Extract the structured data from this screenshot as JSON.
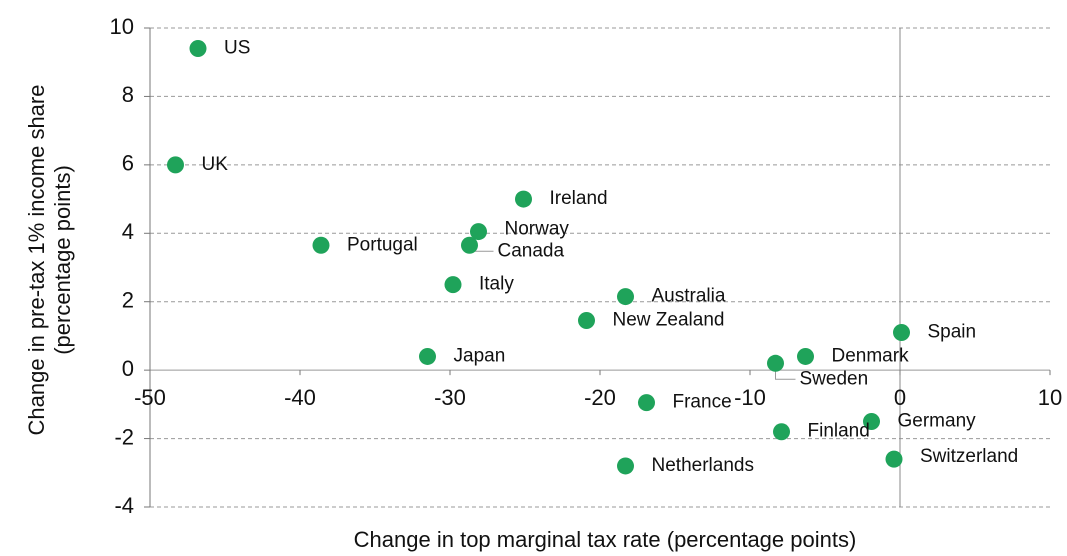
{
  "chart_data": {
    "type": "scatter",
    "xlabel": "Change in top marginal tax rate (percentage points)",
    "ylabel": [
      "Change in pre-tax 1% income share",
      "(percentage points)"
    ],
    "color": "#1fa35a",
    "labels": [
      "US",
      "UK",
      "Portugal",
      "Ireland",
      "Norway",
      "Canada",
      "Italy",
      "Australia",
      "New Zealand",
      "Japan",
      "France",
      "Netherlands",
      "Sweden",
      "Denmark",
      "Spain",
      "Germany",
      "Finland",
      "Switzerland"
    ],
    "x": [
      -46.8,
      -48.3,
      -38.6,
      -25.1,
      -28.1,
      -28.7,
      -29.8,
      -18.3,
      -20.9,
      -31.5,
      -16.9,
      -18.3,
      -8.3,
      -6.3,
      0.1,
      -1.9,
      -7.9,
      -0.4
    ],
    "values": [
      9.4,
      6.0,
      3.65,
      5.0,
      4.05,
      3.65,
      2.5,
      2.15,
      1.45,
      0.4,
      -0.95,
      -2.8,
      0.2,
      0.4,
      1.1,
      -1.5,
      -1.8,
      -2.6
    ],
    "xlim": [
      -50,
      10
    ],
    "xticks": [
      -50,
      -40,
      -30,
      -20,
      -10,
      0,
      10
    ],
    "ylim": [
      -4,
      10
    ],
    "yticks": [
      -4,
      -2,
      0,
      2,
      4,
      6,
      8,
      10
    ],
    "grid": true
  }
}
